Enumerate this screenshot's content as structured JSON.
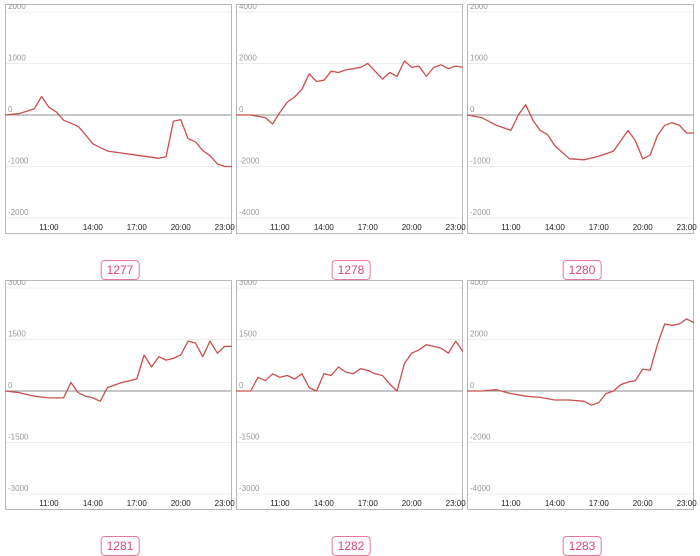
{
  "accent_color": "#c9504e",
  "badge_color": "#d6487a",
  "chart_data": [
    {
      "type": "line",
      "label": "1277",
      "x": [
        "08:00",
        "09:00",
        "10:00",
        "10:30",
        "11:00",
        "11:30",
        "12:00",
        "13:00",
        "14:00",
        "15:00",
        "16:00",
        "17:00",
        "18:00",
        "18:30",
        "19:00",
        "19:30",
        "20:00",
        "20:30",
        "21:00",
        "21:30",
        "22:00",
        "22:30",
        "23:00",
        "23:30"
      ],
      "values": [
        0,
        30,
        120,
        360,
        150,
        60,
        -100,
        -220,
        -560,
        -700,
        -740,
        -780,
        -820,
        -840,
        -810,
        -120,
        -90,
        -460,
        -520,
        -690,
        -790,
        -950,
        -1000,
        -1000
      ],
      "ylim": [
        -2000,
        2000
      ],
      "yticks": [
        "2000",
        "1000",
        "0",
        "-1000",
        "-2000"
      ],
      "xticks": [
        "11:00",
        "14:00",
        "17:00",
        "20:00",
        "23:00"
      ]
    },
    {
      "type": "line",
      "label": "1278",
      "x": [
        "08:00",
        "09:00",
        "10:00",
        "10:30",
        "11:00",
        "11:30",
        "12:00",
        "12:30",
        "13:00",
        "13:30",
        "14:00",
        "14:30",
        "15:00",
        "15:30",
        "16:00",
        "16:30",
        "17:00",
        "17:30",
        "18:00",
        "18:30",
        "19:00",
        "19:30",
        "20:00",
        "20:30",
        "21:00",
        "21:30",
        "22:00",
        "22:30",
        "23:00",
        "23:30"
      ],
      "values": [
        0,
        0,
        -100,
        -350,
        100,
        500,
        700,
        1000,
        1600,
        1300,
        1350,
        1700,
        1650,
        1750,
        1800,
        1850,
        2000,
        1700,
        1400,
        1650,
        1500,
        2100,
        1850,
        1900,
        1500,
        1850,
        1950,
        1800,
        1900,
        1850
      ],
      "ylim": [
        -4000,
        4000
      ],
      "yticks": [
        "4000",
        "2000",
        "0",
        "-2000",
        "-4000"
      ],
      "xticks": [
        "11:00",
        "14:00",
        "17:00",
        "20:00",
        "23:00"
      ]
    },
    {
      "type": "line",
      "label": "1280",
      "x": [
        "08:00",
        "09:00",
        "10:00",
        "11:00",
        "11:30",
        "12:00",
        "12:30",
        "13:00",
        "13:30",
        "14:00",
        "15:00",
        "16:00",
        "17:00",
        "18:00",
        "18:30",
        "19:00",
        "19:30",
        "20:00",
        "20:30",
        "21:00",
        "21:30",
        "22:00",
        "22:30",
        "23:00",
        "23:30"
      ],
      "values": [
        0,
        -50,
        -200,
        -300,
        0,
        200,
        -100,
        -300,
        -380,
        -600,
        -850,
        -870,
        -800,
        -700,
        -500,
        -300,
        -500,
        -850,
        -780,
        -400,
        -200,
        -150,
        -200,
        -350,
        -350
      ],
      "ylim": [
        -2000,
        2000
      ],
      "yticks": [
        "2000",
        "1000",
        "0",
        "-1000",
        "-2000"
      ],
      "xticks": [
        "11:00",
        "14:00",
        "17:00",
        "20:00",
        "23:00"
      ]
    },
    {
      "type": "line",
      "label": "1281",
      "x": [
        "08:00",
        "09:00",
        "10:00",
        "11:00",
        "12:00",
        "12:30",
        "13:00",
        "13:30",
        "14:00",
        "14:30",
        "15:00",
        "16:00",
        "17:00",
        "17:30",
        "18:00",
        "18:30",
        "19:00",
        "19:30",
        "20:00",
        "20:30",
        "21:00",
        "21:30",
        "22:00",
        "22:30",
        "23:00",
        "23:30"
      ],
      "values": [
        0,
        -50,
        -150,
        -200,
        -200,
        250,
        -50,
        -150,
        -200,
        -300,
        100,
        250,
        350,
        1050,
        700,
        1000,
        900,
        950,
        1050,
        1450,
        1400,
        1000,
        1450,
        1100,
        1300,
        1300
      ],
      "ylim": [
        -3000,
        3000
      ],
      "yticks": [
        "3000",
        "1500",
        "0",
        "-1500",
        "-3000"
      ],
      "xticks": [
        "11:00",
        "14:00",
        "17:00",
        "20:00",
        "23:00"
      ]
    },
    {
      "type": "line",
      "label": "1282",
      "x": [
        "08:00",
        "09:00",
        "09:30",
        "10:00",
        "10:30",
        "11:00",
        "11:30",
        "12:00",
        "12:30",
        "13:00",
        "13:30",
        "14:00",
        "14:30",
        "15:00",
        "15:30",
        "16:00",
        "16:30",
        "17:00",
        "17:30",
        "18:00",
        "18:30",
        "19:00",
        "19:30",
        "20:00",
        "20:30",
        "21:00",
        "21:30",
        "22:00",
        "22:30",
        "23:00",
        "23:30"
      ],
      "values": [
        0,
        0,
        400,
        300,
        500,
        400,
        450,
        350,
        500,
        100,
        0,
        500,
        450,
        700,
        550,
        500,
        650,
        600,
        500,
        450,
        200,
        0,
        800,
        1100,
        1200,
        1350,
        1300,
        1250,
        1100,
        1450,
        1150
      ],
      "ylim": [
        -3000,
        3000
      ],
      "yticks": [
        "3000",
        "1500",
        "0",
        "-1500",
        "-3000"
      ],
      "xticks": [
        "11:00",
        "14:00",
        "17:00",
        "20:00",
        "23:00"
      ]
    },
    {
      "type": "line",
      "label": "1283",
      "x": [
        "08:00",
        "09:00",
        "10:00",
        "11:00",
        "12:00",
        "13:00",
        "14:00",
        "15:00",
        "16:00",
        "16:30",
        "17:00",
        "17:30",
        "18:00",
        "18:30",
        "19:00",
        "19:30",
        "20:00",
        "20:30",
        "21:00",
        "21:30",
        "22:00",
        "22:30",
        "23:00",
        "23:30"
      ],
      "values": [
        0,
        0,
        50,
        -100,
        -200,
        -250,
        -350,
        -350,
        -400,
        -550,
        -450,
        -100,
        0,
        250,
        350,
        400,
        850,
        800,
        1800,
        2600,
        2550,
        2600,
        2800,
        2650
      ],
      "ylim": [
        -4000,
        4000
      ],
      "yticks": [
        "4000",
        "2000",
        "0",
        "-2000",
        "-4000"
      ],
      "xticks": [
        "11:00",
        "14:00",
        "17:00",
        "20:00",
        "23:00"
      ]
    }
  ]
}
